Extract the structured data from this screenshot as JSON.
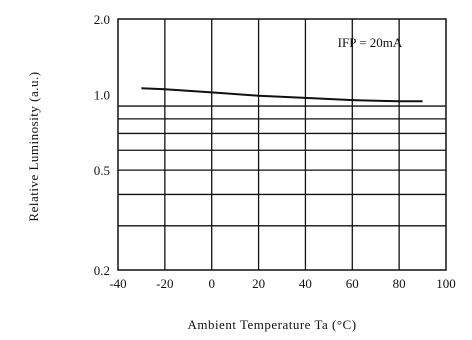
{
  "chart_data": {
    "type": "line",
    "annotation": "IFP = 20mA",
    "xlabel": "Ambient Temperature Ta (°C)",
    "ylabel": "Relative Luminosity (a.u.)",
    "xlim": [
      -40,
      100
    ],
    "ylim": [
      0.2,
      2.0
    ],
    "yscale": "log",
    "x_ticks": [
      -40,
      -20,
      0,
      20,
      40,
      60,
      80,
      100
    ],
    "x_tick_labels": [
      "-40",
      "-20",
      "0",
      "20",
      "40",
      "60",
      "80",
      "100"
    ],
    "y_ticks": [
      0.2,
      0.5,
      1.0,
      2.0
    ],
    "y_tick_labels": [
      "0.2",
      "0.5",
      "1.0",
      "2.0"
    ],
    "y_gridlines": [
      0.3,
      0.4,
      0.5,
      0.6,
      0.7,
      0.8,
      0.9
    ],
    "grid": true,
    "series": [
      {
        "x": [
          -30,
          -20,
          0,
          20,
          40,
          60,
          80,
          90
        ],
        "y": [
          1.06,
          1.05,
          1.02,
          0.99,
          0.97,
          0.95,
          0.94,
          0.94
        ]
      }
    ]
  }
}
